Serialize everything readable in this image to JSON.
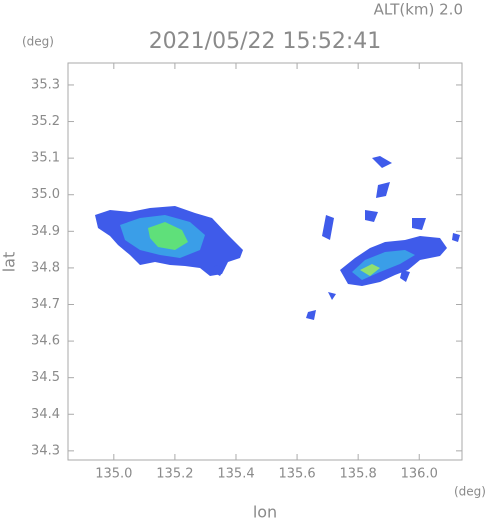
{
  "chart_data": {
    "type": "map",
    "title": "2021/05/22 15:52:41",
    "subtitle": "ALT(km) 2.0",
    "y_unit": "(deg)",
    "x_unit": "(deg)",
    "xlabel": "lon",
    "ylabel": "lat",
    "xlim": [
      134.85,
      136.14
    ],
    "ylim": [
      34.275,
      35.36
    ],
    "xticks": [
      {
        "value": 135.0,
        "label": "135.0"
      },
      135.2,
      135.4,
      135.6,
      135.8,
      {
        "value": 136.0,
        "label": "136.0"
      }
    ],
    "yticks": [
      34.3,
      34.4,
      34.5,
      34.6,
      34.7,
      34.8,
      34.9,
      {
        "value": 35.0,
        "label": "35.0"
      },
      35.1,
      35.2,
      35.3
    ]
  }
}
